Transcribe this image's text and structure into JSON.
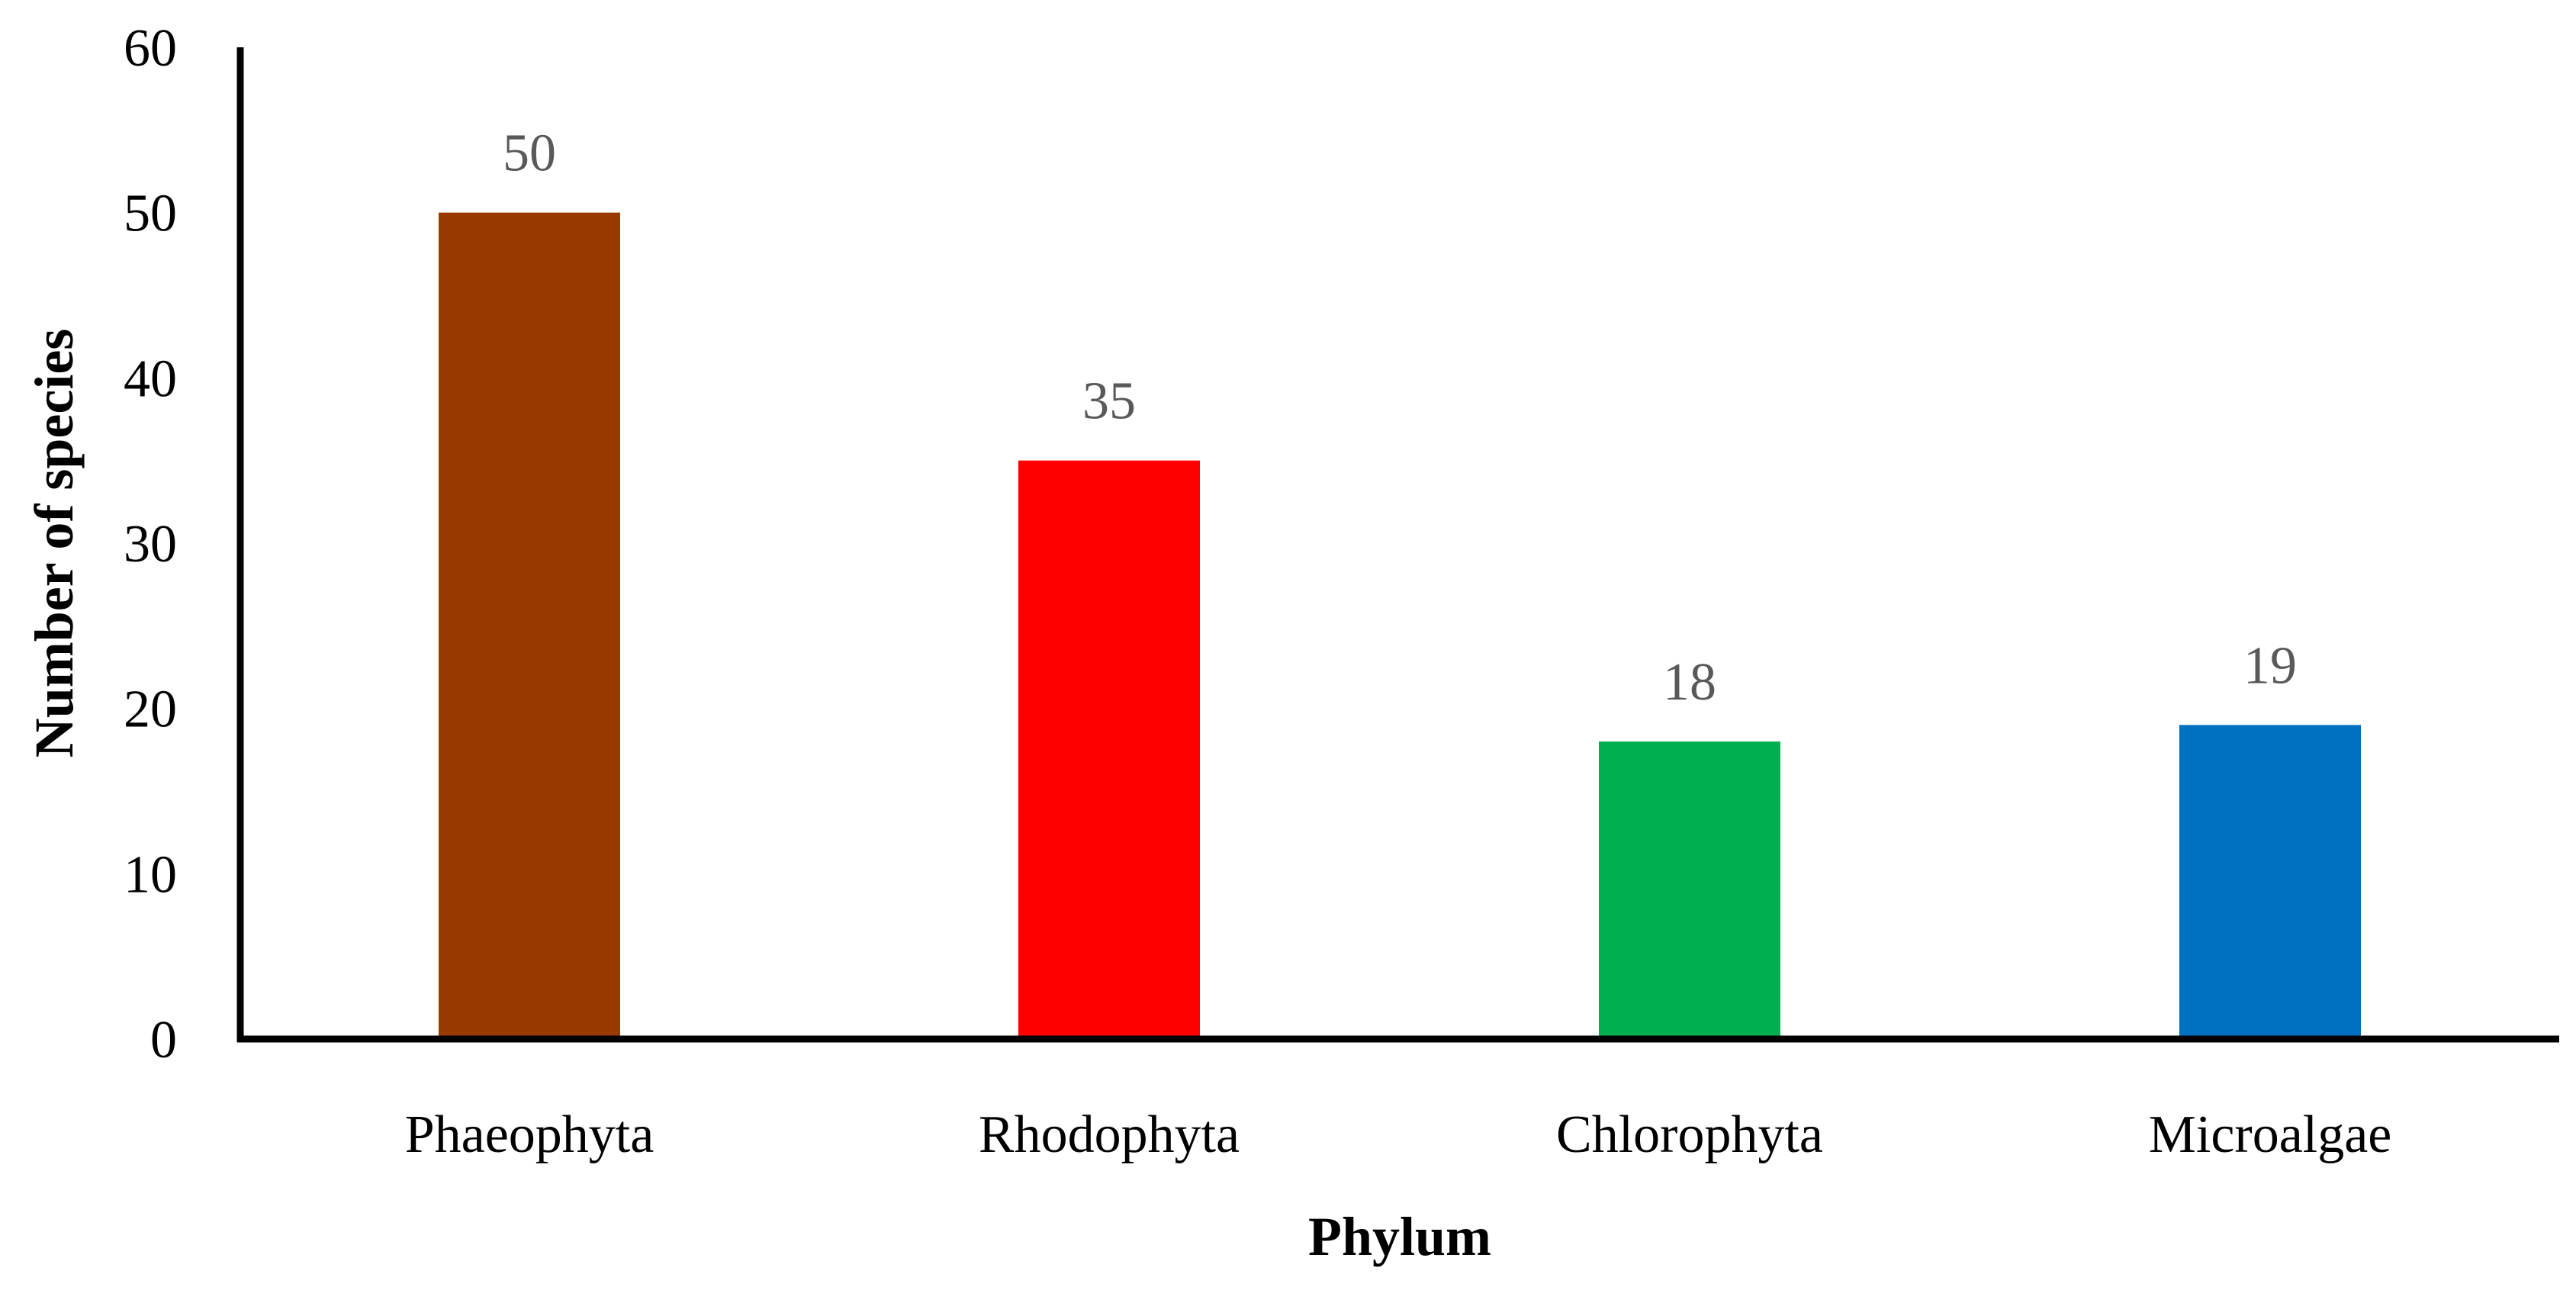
{
  "chart_data": {
    "type": "bar",
    "title": "",
    "xlabel": "Phylum",
    "ylabel": "Number of species",
    "categories": [
      "Phaeophyta",
      "Rhodophyta",
      "Chlorophyta",
      "Microalgae"
    ],
    "values": [
      50,
      35,
      18,
      19
    ],
    "data_labels": [
      "50",
      "35",
      "18",
      "19"
    ],
    "bar_colors": [
      "#983A00",
      "#FF0000",
      "#00B050",
      "#0070C0"
    ],
    "ylim": [
      0,
      60
    ],
    "yticks": [
      0,
      10,
      20,
      30,
      40,
      50,
      60
    ],
    "ytick_labels": [
      "0",
      "10",
      "20",
      "30",
      "40",
      "50",
      "60"
    ],
    "grid": false,
    "legend": "none"
  }
}
